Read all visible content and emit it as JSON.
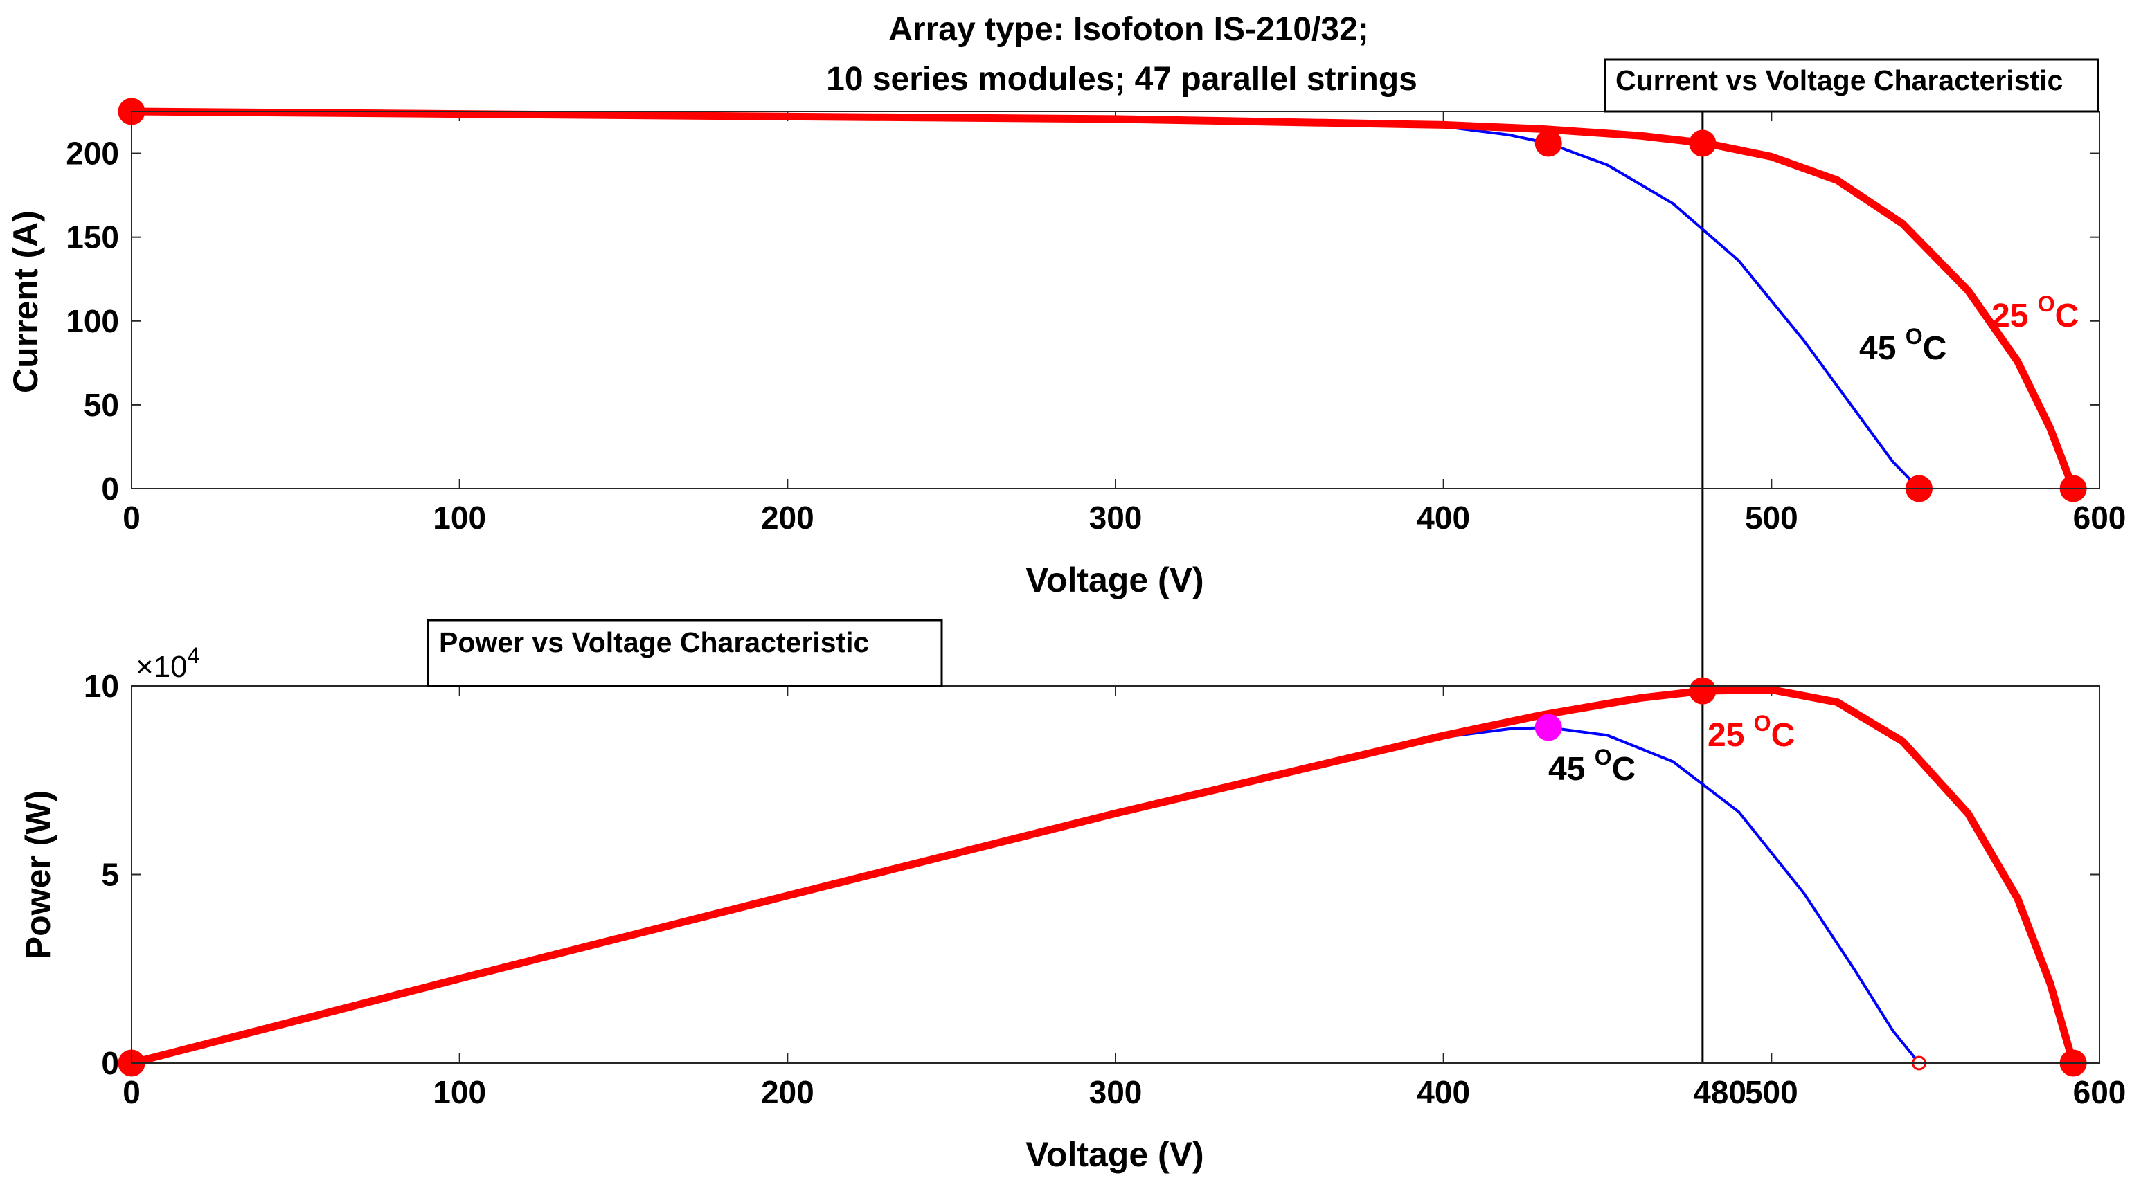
{
  "chart_data": [
    {
      "type": "line",
      "title": "Array type: Isofoton IS-210/32;",
      "subtitle": "10 series modules; 47 parallel strings",
      "box_label": "Current vs Voltage Characteristic",
      "xlabel": "Voltage (V)",
      "ylabel": "Current (A)",
      "xlim": [
        0,
        600
      ],
      "ylim": [
        0,
        225
      ],
      "xticks": [
        0,
        100,
        200,
        300,
        400,
        500,
        600
      ],
      "xtick_labels": [
        "0",
        "100",
        "200",
        "300",
        "400",
        "500",
        "600"
      ],
      "yticks": [
        0,
        50,
        100,
        150,
        200
      ],
      "ytick_labels": [
        "0",
        "50",
        "100",
        "150",
        "200"
      ],
      "series": [
        {
          "name": "25 °C",
          "label_main": "25 ",
          "label_sup": "O",
          "label_unit": "C",
          "color": "#ff0000",
          "x": [
            0,
            100,
            200,
            300,
            400,
            430,
            460,
            480,
            500,
            520,
            540,
            560,
            575,
            585,
            592
          ],
          "y": [
            225,
            223.5,
            222,
            220.5,
            217,
            214.5,
            210.5,
            206,
            198,
            184,
            158,
            118,
            76,
            36,
            0
          ]
        },
        {
          "name": "45 °C",
          "label_main": "45 ",
          "label_sup": "O",
          "label_unit": "C",
          "color": "#0000ff",
          "x": [
            0,
            100,
            200,
            300,
            380,
            400,
            420,
            432,
            450,
            470,
            490,
            510,
            525,
            537,
            545
          ],
          "y": [
            225,
            223.5,
            222,
            220.5,
            218,
            216,
            211,
            206,
            193,
            170,
            136,
            88,
            48,
            16,
            0
          ]
        }
      ],
      "markers": [
        {
          "x": 0,
          "y": 225,
          "color": "#ff0000"
        },
        {
          "x": 432,
          "y": 206,
          "color": "#ff0000"
        },
        {
          "x": 479,
          "y": 206,
          "color": "#ff0000"
        },
        {
          "x": 545,
          "y": 0,
          "color": "#ff0000"
        },
        {
          "x": 592,
          "y": 0,
          "color": "#ff0000"
        }
      ],
      "vline_x": 479
    },
    {
      "type": "line",
      "box_label": "Power vs Voltage Characteristic",
      "xlabel": "Voltage (V)",
      "ylabel": "Power (W)",
      "y_multiplier_base": "×10",
      "y_multiplier_exp": "4",
      "xlim": [
        0,
        600
      ],
      "ylim": [
        0,
        10
      ],
      "xticks": [
        0,
        100,
        200,
        300,
        400,
        500,
        600
      ],
      "xtick_labels": [
        "0",
        "100",
        "200",
        "300",
        "400",
        "500",
        "600"
      ],
      "yticks": [
        0,
        5,
        10
      ],
      "ytick_labels": [
        "0",
        "5",
        "10"
      ],
      "extra_xtick_label": "480",
      "extra_xtick_value": 480,
      "series": [
        {
          "name": "25 °C",
          "label_main": "25 ",
          "label_sup": "O",
          "label_unit": "C",
          "color": "#ff0000",
          "x": [
            0,
            100,
            200,
            300,
            400,
            430,
            460,
            479,
            500,
            520,
            540,
            560,
            575,
            585,
            592
          ],
          "y": [
            0,
            2.24,
            4.44,
            6.62,
            8.68,
            9.23,
            9.68,
            9.87,
            9.9,
            9.57,
            8.53,
            6.61,
            4.37,
            2.11,
            0
          ]
        },
        {
          "name": "45 °C",
          "label_main": "45 ",
          "label_sup": "O",
          "label_unit": "C",
          "color": "#0000ff",
          "x": [
            0,
            100,
            200,
            300,
            380,
            400,
            420,
            432,
            450,
            470,
            490,
            510,
            525,
            537,
            545
          ],
          "y": [
            0,
            2.24,
            4.44,
            6.62,
            8.28,
            8.64,
            8.86,
            8.9,
            8.69,
            7.99,
            6.66,
            4.49,
            2.52,
            0.86,
            0
          ]
        }
      ],
      "markers": [
        {
          "x": 0,
          "y": 0,
          "color": "#ff0000",
          "style": "filled"
        },
        {
          "x": 432,
          "y": 8.9,
          "color": "#ff00ff",
          "style": "filled"
        },
        {
          "x": 479,
          "y": 9.87,
          "color": "#ff0000",
          "style": "filled"
        },
        {
          "x": 545,
          "y": 0,
          "color": "#ff0000",
          "style": "hollow"
        },
        {
          "x": 592,
          "y": 0,
          "color": "#ff0000",
          "style": "filled"
        }
      ],
      "vline_x": 479
    }
  ]
}
